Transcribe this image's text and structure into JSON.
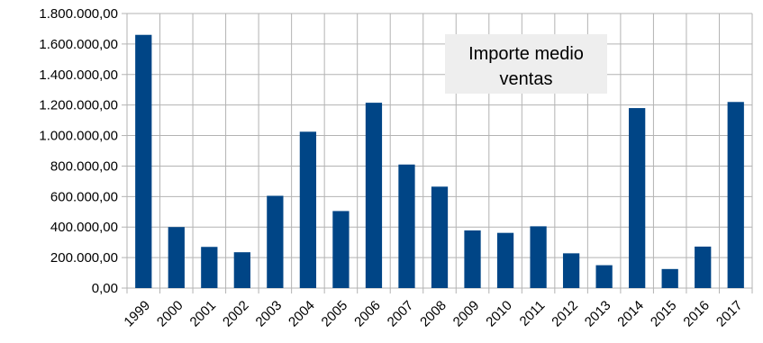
{
  "chart_data": {
    "type": "bar",
    "title": [
      "Importe medio",
      "ventas"
    ],
    "categories": [
      "1999",
      "2000",
      "2001",
      "2002",
      "2003",
      "2004",
      "2005",
      "2006",
      "2007",
      "2008",
      "2009",
      "2010",
      "2011",
      "2012",
      "2013",
      "2014",
      "2015",
      "2016",
      "2017"
    ],
    "values": [
      1660000,
      400000,
      270000,
      235000,
      605000,
      1025000,
      505000,
      1215000,
      810000,
      665000,
      378000,
      362000,
      405000,
      228000,
      150000,
      1180000,
      125000,
      272000,
      1220000
    ],
    "ylim": [
      0,
      1800000
    ],
    "yticks": [
      0,
      200000,
      400000,
      600000,
      800000,
      1000000,
      1200000,
      1400000,
      1600000,
      1800000
    ],
    "ytick_labels": [
      "0,00",
      "200.000,00",
      "400.000,00",
      "600.000,00",
      "800.000,00",
      "1.000.000,00",
      "1.200.000,00",
      "1.400.000,00",
      "1.600.000,00",
      "1.800.000,00"
    ],
    "grid": true,
    "legend": "none",
    "title_placement": "top-center box",
    "colors": {
      "bar": "#004586",
      "grid": "#b3b3b3",
      "title_box": "#eeeeee"
    }
  }
}
